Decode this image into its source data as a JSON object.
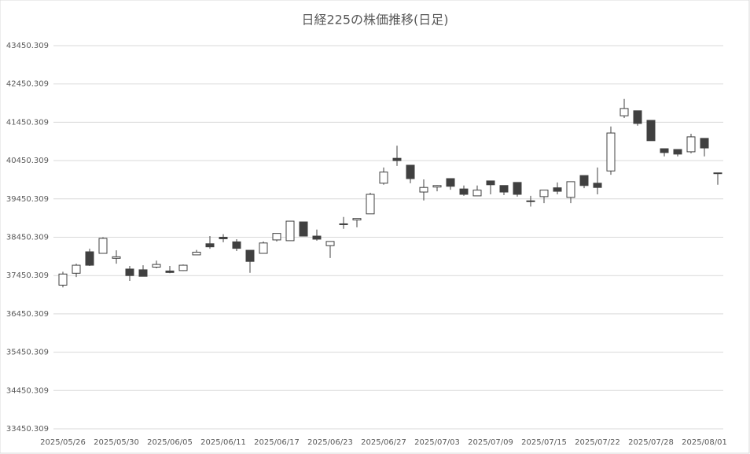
{
  "chart_data": {
    "type": "candlestick",
    "title": "日経225の株価推移(日足)",
    "categories": [
      "2025/05/26",
      null,
      null,
      null,
      "2025/05/30",
      null,
      null,
      null,
      "2025/06/05",
      null,
      null,
      null,
      "2025/06/11",
      null,
      null,
      null,
      "2025/06/17",
      null,
      null,
      null,
      "2025/06/23",
      null,
      null,
      null,
      "2025/06/27",
      null,
      null,
      null,
      "2025/07/03",
      null,
      null,
      null,
      "2025/07/09",
      null,
      null,
      null,
      "2025/07/15",
      null,
      null,
      null,
      "2025/07/22",
      null,
      null,
      null,
      "2025/07/28",
      null,
      null,
      null,
      "2025/08/01",
      null
    ],
    "open": [
      37200,
      37510,
      38070,
      38030,
      37900,
      37620,
      37600,
      37670,
      37570,
      37580,
      37990,
      38280,
      38450,
      38330,
      38110,
      38030,
      38380,
      38360,
      38850,
      38480,
      38230,
      38800,
      38900,
      39060,
      39860,
      40510,
      40330,
      39630,
      39760,
      39980,
      39710,
      39530,
      39920,
      39800,
      39880,
      39400,
      39510,
      39740,
      39490,
      40060,
      39860,
      40180,
      41620,
      41750,
      41500,
      40760,
      40740,
      40680,
      41030,
      40130
    ],
    "high": [
      37550,
      37760,
      38150,
      38450,
      38110,
      37700,
      37720,
      37840,
      37700,
      37740,
      38120,
      38480,
      38530,
      38400,
      38110,
      38340,
      38550,
      38870,
      38850,
      38650,
      38340,
      38980,
      38940,
      39610,
      40270,
      40840,
      40330,
      39960,
      39810,
      39980,
      39800,
      39800,
      39920,
      39800,
      39880,
      39530,
      39680,
      39880,
      39900,
      40060,
      40270,
      41340,
      42060,
      41750,
      41500,
      40760,
      40740,
      41150,
      41030,
      40130
    ],
    "low": [
      37140,
      37410,
      37700,
      38030,
      37760,
      37310,
      37430,
      37640,
      37510,
      37570,
      37990,
      38150,
      38320,
      38090,
      37520,
      38030,
      38340,
      38360,
      38480,
      38360,
      37910,
      38670,
      38710,
      39060,
      39820,
      40310,
      39860,
      39410,
      39650,
      39690,
      39530,
      39530,
      39570,
      39550,
      39510,
      39250,
      39340,
      39570,
      39340,
      39730,
      39570,
      40080,
      41560,
      41360,
      40970,
      40560,
      40560,
      40640,
      40560,
      39820
    ],
    "close": [
      37490,
      37720,
      37720,
      38420,
      37940,
      37450,
      37430,
      37740,
      37530,
      37720,
      38060,
      38200,
      38410,
      38160,
      37820,
      38300,
      38550,
      38870,
      38480,
      38400,
      38340,
      38780,
      38940,
      39570,
      40150,
      40450,
      39980,
      39750,
      39800,
      39780,
      39570,
      39680,
      39820,
      39630,
      39570,
      39390,
      39680,
      39650,
      39900,
      39800,
      39750,
      41170,
      41810,
      41420,
      40970,
      40660,
      40620,
      41070,
      40780,
      40110
    ],
    "up_color": "#ffffff",
    "down_color": "#404040",
    "edge_color": "#404040",
    "ylim": [
      33450.309,
      43450.309
    ],
    "yticks": [
      33450.309,
      34450.309,
      35450.309,
      36450.309,
      37450.309,
      38450.309,
      39450.309,
      40450.309,
      41450.309,
      42450.309,
      43450.309
    ],
    "grid": true
  }
}
